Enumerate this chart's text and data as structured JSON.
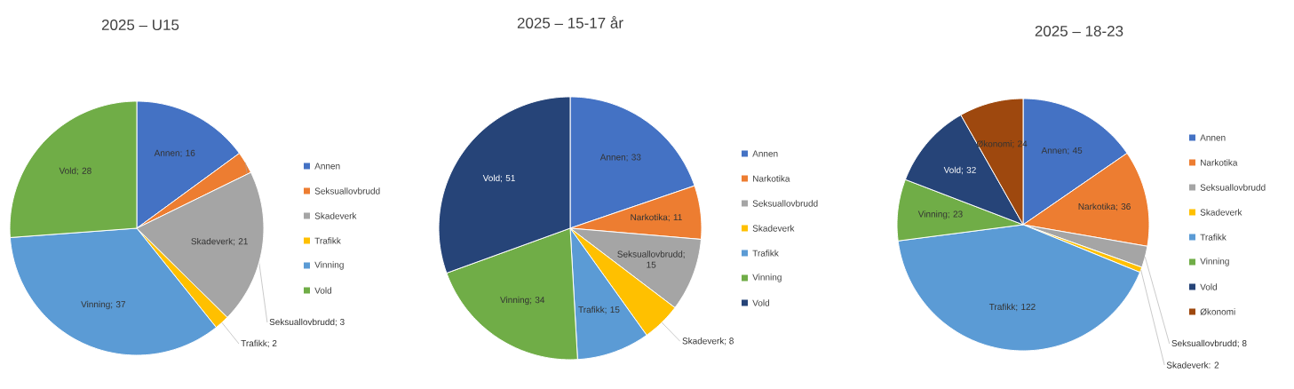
{
  "chart_data": [
    {
      "type": "pie",
      "title": "2025 – U15",
      "legend": "right",
      "categories": [
        "Annen",
        "Seksuallovbrudd",
        "Skadeverk",
        "Trafikk",
        "Vinning",
        "Vold"
      ],
      "values": [
        16,
        3,
        21,
        2,
        37,
        28
      ],
      "colors": [
        "#4472c4",
        "#ed7d31",
        "#a5a5a5",
        "#ffc000",
        "#5b9bd5",
        "#70ad47"
      ],
      "value_labels": [
        "Annen; 16",
        "Seksuallovbrudd; 3",
        "Skadeverk; 21",
        "Trafikk; 2",
        "Vinning; 37",
        "Vold; 28"
      ]
    },
    {
      "type": "pie",
      "title": "2025 – 15-17 år",
      "legend": "right",
      "categories": [
        "Annen",
        "Narkotika",
        "Seksuallovbrudd",
        "Skadeverk",
        "Trafikk",
        "Vinning",
        "Vold"
      ],
      "values": [
        33,
        11,
        15,
        8,
        15,
        34,
        51
      ],
      "colors": [
        "#4472c4",
        "#ed7d31",
        "#a5a5a5",
        "#ffc000",
        "#5b9bd5",
        "#70ad47",
        "#264478"
      ],
      "value_labels": [
        "Annen; 33",
        "Narkotika; 11",
        "Seksuallovbrudd; 15",
        "Skadeverk; 8",
        "Trafikk; 15",
        "Vinning; 34",
        "Vold; 51"
      ]
    },
    {
      "type": "pie",
      "title": "2025 – 18-23",
      "legend": "right",
      "categories": [
        "Annen",
        "Narkotika",
        "Seksuallovbrudd",
        "Skadeverk",
        "Trafikk",
        "Vinning",
        "Vold",
        "Økonomi"
      ],
      "values": [
        45,
        36,
        8,
        2,
        122,
        23,
        32,
        24
      ],
      "colors": [
        "#4472c4",
        "#ed7d31",
        "#a5a5a5",
        "#ffc000",
        "#5b9bd5",
        "#70ad47",
        "#264478",
        "#9e480e"
      ],
      "value_labels": [
        "Annen; 45",
        "Narkotika; 36",
        "Seksuallovbrudd; 8",
        "Skadeverk: 2",
        "Trafikk; 122",
        "Vinning; 23",
        "Vold; 32",
        "Økonomi; 24"
      ]
    }
  ]
}
